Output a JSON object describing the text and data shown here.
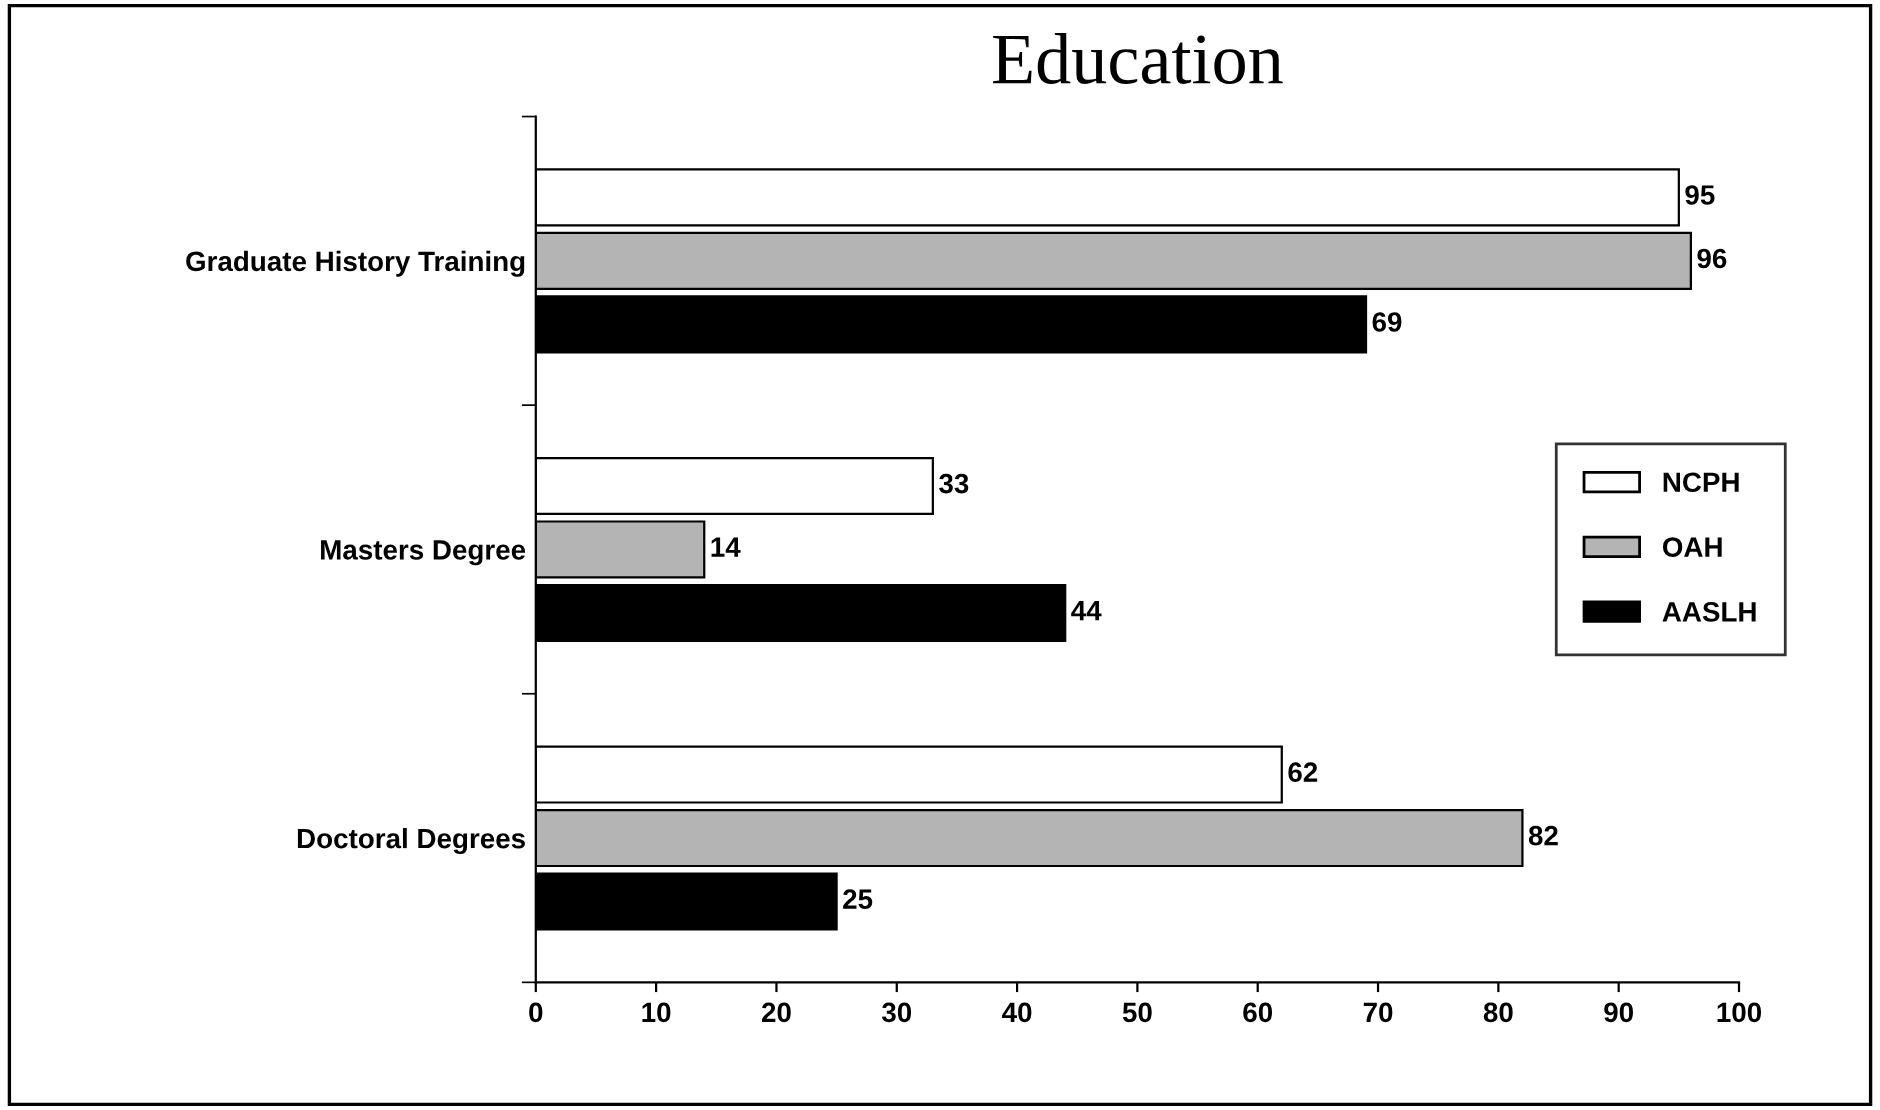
{
  "chart_data": {
    "type": "bar",
    "orientation": "horizontal",
    "title": "Education",
    "categories": [
      "Graduate History Training",
      "Masters Degree",
      "Doctoral Degrees"
    ],
    "series": [
      {
        "name": "NCPH",
        "color": "#ffffff",
        "values": [
          95,
          33,
          62
        ]
      },
      {
        "name": "OAH",
        "color": "#b4b4b4",
        "values": [
          96,
          14,
          82
        ]
      },
      {
        "name": "AASLH",
        "color": "#000000",
        "values": [
          69,
          44,
          25
        ]
      }
    ],
    "xlim": [
      0,
      100
    ],
    "xticks": [
      0,
      10,
      20,
      30,
      40,
      50,
      60,
      70,
      80,
      90,
      100
    ],
    "data_labels": true,
    "legend": "right",
    "grid": false
  }
}
